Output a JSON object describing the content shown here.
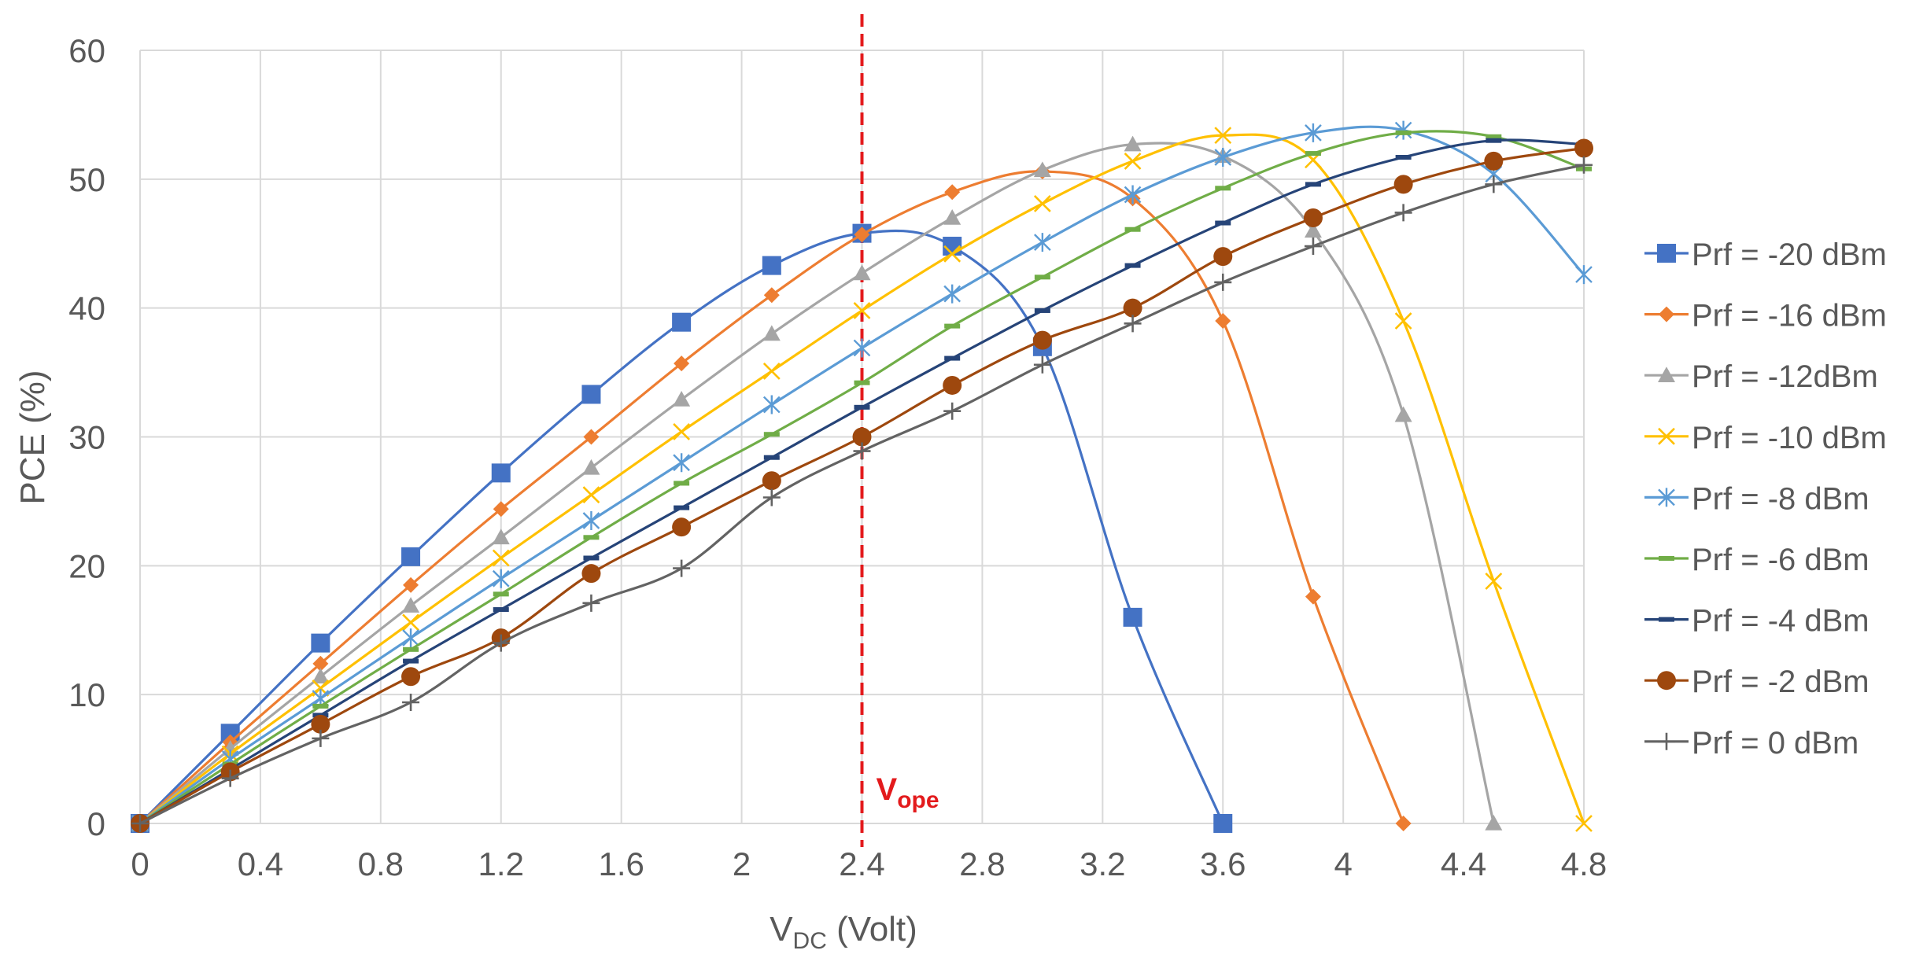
{
  "chart_data": {
    "type": "line",
    "title": "",
    "xlabel_main": "V",
    "xlabel_sub": "DC",
    "xlabel_suffix": " (Volt)",
    "ylabel": "PCE (%)",
    "xlim": [
      0,
      4.8
    ],
    "ylim": [
      0,
      60
    ],
    "x_ticks": [
      0,
      0.4,
      0.8,
      1.2,
      1.6,
      2,
      2.4,
      2.8,
      3.2,
      3.6,
      4,
      4.4,
      4.8
    ],
    "x_tick_labels": [
      "0",
      "0.4",
      "0.8",
      "1.2",
      "1.6",
      "2",
      "2.4",
      "2.8",
      "3.2",
      "3.6",
      "4",
      "4.4",
      "4.8"
    ],
    "y_ticks": [
      0,
      10,
      20,
      30,
      40,
      50,
      60
    ],
    "y_tick_labels": [
      "0",
      "10",
      "20",
      "30",
      "40",
      "50",
      "60"
    ],
    "grid": true,
    "legend_position": "right",
    "annotation": {
      "label_main": "V",
      "label_sub": "ope",
      "x": 2.4,
      "color": "#e31a1c",
      "style": "dashed vertical line"
    },
    "series": [
      {
        "name": "Prf = -20 dBm",
        "color": "#4472c4",
        "marker": "square",
        "x": [
          0,
          0.3,
          0.6,
          0.9,
          1.2,
          1.5,
          1.8,
          2.1,
          2.4,
          2.7,
          3.0,
          3.3,
          3.6
        ],
        "y": [
          0,
          7.0,
          14.0,
          20.7,
          27.2,
          33.3,
          38.9,
          43.3,
          45.8,
          44.8,
          37.0,
          16.0,
          0
        ]
      },
      {
        "name": "Prf = -16 dBm",
        "color": "#ed7d31",
        "marker": "diamond",
        "x": [
          0,
          0.3,
          0.6,
          0.9,
          1.2,
          1.5,
          1.8,
          2.1,
          2.4,
          2.7,
          3.0,
          3.3,
          3.6,
          3.9,
          4.2
        ],
        "y": [
          0,
          6.3,
          12.4,
          18.5,
          24.4,
          30.0,
          35.7,
          41.0,
          45.7,
          49.0,
          50.6,
          48.5,
          39.0,
          17.6,
          0
        ]
      },
      {
        "name": "Prf = -12dBm",
        "color": "#a5a5a5",
        "marker": "triangle",
        "x": [
          0,
          0.3,
          0.6,
          0.9,
          1.2,
          1.5,
          1.8,
          2.1,
          2.4,
          2.7,
          3.0,
          3.3,
          3.6,
          3.9,
          4.2,
          4.5
        ],
        "y": [
          0,
          5.8,
          11.4,
          16.9,
          22.2,
          27.6,
          32.9,
          38.0,
          42.7,
          47.0,
          50.7,
          52.7,
          51.8,
          46.0,
          31.7,
          0
        ]
      },
      {
        "name": "Prf = -10 dBm",
        "color": "#ffc000",
        "marker": "x",
        "x": [
          0,
          0.3,
          0.6,
          0.9,
          1.2,
          1.5,
          1.8,
          2.1,
          2.4,
          2.7,
          3.0,
          3.3,
          3.6,
          3.9,
          4.2,
          4.5,
          4.8
        ],
        "y": [
          0,
          5.4,
          10.5,
          15.6,
          20.6,
          25.5,
          30.4,
          35.1,
          39.8,
          44.2,
          48.1,
          51.4,
          53.4,
          51.5,
          39.0,
          18.8,
          0
        ]
      },
      {
        "name": "Prf = -8 dBm",
        "color": "#5b9bd5",
        "marker": "asterisk",
        "x": [
          0,
          0.3,
          0.6,
          0.9,
          1.2,
          1.5,
          1.8,
          2.1,
          2.4,
          2.7,
          3.0,
          3.3,
          3.6,
          3.9,
          4.2,
          4.5,
          4.8
        ],
        "y": [
          0,
          5.0,
          9.7,
          14.4,
          19.0,
          23.5,
          28.0,
          32.5,
          36.9,
          41.1,
          45.1,
          48.8,
          51.7,
          53.6,
          53.8,
          50.4,
          42.6
        ]
      },
      {
        "name": "Prf = -6 dBm",
        "color": "#70ad47",
        "marker": "dash",
        "x": [
          0,
          0.3,
          0.6,
          0.9,
          1.2,
          1.5,
          1.8,
          2.1,
          2.4,
          2.7,
          3.0,
          3.3,
          3.6,
          3.9,
          4.2,
          4.5,
          4.8
        ],
        "y": [
          0,
          4.6,
          9.1,
          13.5,
          17.8,
          22.2,
          26.4,
          30.2,
          34.2,
          38.6,
          42.4,
          46.1,
          49.3,
          52.0,
          53.6,
          53.3,
          50.8
        ]
      },
      {
        "name": "Prf = -4 dBm",
        "color": "#264478",
        "marker": "dash",
        "x": [
          0,
          0.3,
          0.6,
          0.9,
          1.2,
          1.5,
          1.8,
          2.1,
          2.4,
          2.7,
          3.0,
          3.3,
          3.6,
          3.9,
          4.2,
          4.5,
          4.8
        ],
        "y": [
          0,
          4.2,
          8.4,
          12.6,
          16.6,
          20.6,
          24.5,
          28.4,
          32.3,
          36.1,
          39.8,
          43.3,
          46.6,
          49.6,
          51.7,
          53.0,
          52.7
        ]
      },
      {
        "name": "Prf = -2 dBm",
        "color": "#9e480e",
        "marker": "circle",
        "x": [
          0,
          0.3,
          0.6,
          0.9,
          1.2,
          1.5,
          1.8,
          2.1,
          2.4,
          2.7,
          3.0,
          3.3,
          3.6,
          3.9,
          4.2,
          4.5,
          4.8
        ],
        "y": [
          0,
          4.0,
          7.7,
          11.4,
          14.4,
          19.4,
          23.0,
          26.6,
          30.0,
          34.0,
          37.5,
          40.0,
          44.0,
          47.0,
          49.6,
          51.4,
          52.4
        ]
      },
      {
        "name": "Prf = 0 dBm",
        "color": "#636363",
        "marker": "plus",
        "x": [
          0,
          0.3,
          0.6,
          0.9,
          1.2,
          1.5,
          1.8,
          2.1,
          2.4,
          2.7,
          3.0,
          3.3,
          3.6,
          3.9,
          4.2,
          4.5,
          4.8
        ],
        "y": [
          0,
          3.5,
          6.6,
          9.4,
          14.0,
          17.1,
          19.8,
          25.3,
          28.9,
          32.0,
          35.6,
          38.8,
          42.0,
          44.8,
          47.4,
          49.6,
          51.1
        ]
      }
    ]
  }
}
